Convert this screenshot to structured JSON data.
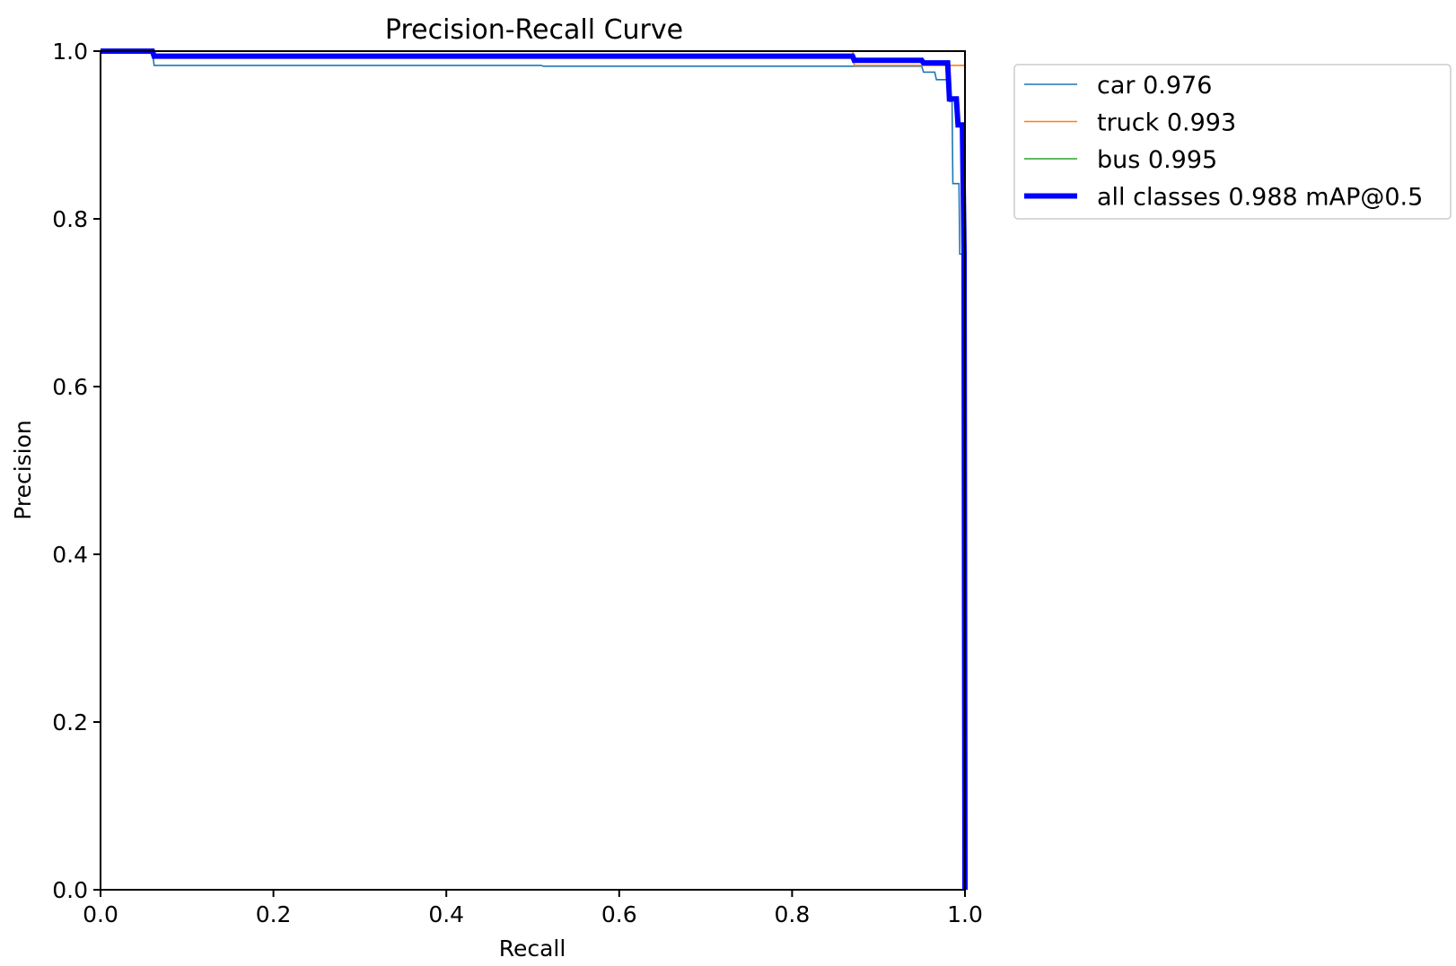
{
  "chart_data": {
    "type": "line",
    "title": "Precision-Recall Curve",
    "xlabel": "Recall",
    "ylabel": "Precision",
    "xlim": [
      0,
      1
    ],
    "ylim": [
      0,
      1
    ],
    "xticks": [
      "0.0",
      "0.2",
      "0.4",
      "0.6",
      "0.8",
      "1.0"
    ],
    "yticks": [
      "0.0",
      "0.2",
      "0.4",
      "0.6",
      "0.8",
      "1.0"
    ],
    "grid": false,
    "legend_position": "outside-top-right",
    "series": [
      {
        "name": "car 0.976",
        "color": "#1f77b4",
        "width": "thin",
        "points": [
          [
            0,
            1.0
          ],
          [
            0.06,
            1.0
          ],
          [
            0.062,
            0.983
          ],
          [
            0.51,
            0.983
          ],
          [
            0.512,
            0.982
          ],
          [
            0.87,
            0.982
          ],
          [
            0.95,
            0.982
          ],
          [
            0.952,
            0.975
          ],
          [
            0.965,
            0.975
          ],
          [
            0.967,
            0.966
          ],
          [
            0.98,
            0.966
          ],
          [
            0.982,
            0.94
          ],
          [
            0.985,
            0.94
          ],
          [
            0.986,
            0.842
          ],
          [
            0.993,
            0.842
          ],
          [
            0.994,
            0.758
          ],
          [
            0.999,
            0.758
          ],
          [
            1.0,
            0.0
          ]
        ]
      },
      {
        "name": "truck 0.993",
        "color": "#ff7f0e",
        "width": "thin",
        "points": [
          [
            0,
            1.0
          ],
          [
            0.87,
            1.0
          ],
          [
            0.872,
            0.983
          ],
          [
            1.0,
            0.983
          ],
          [
            1.0,
            0.0
          ]
        ]
      },
      {
        "name": "bus 0.995",
        "color": "#2ca02c",
        "width": "thin",
        "points": [
          [
            0,
            1.0
          ],
          [
            1.0,
            1.0
          ],
          [
            1.0,
            0.0
          ]
        ]
      },
      {
        "name": "all classes 0.988 mAP@0.5",
        "color": "#0000ff",
        "width": "thick",
        "points": [
          [
            0,
            1.0
          ],
          [
            0.06,
            1.0
          ],
          [
            0.062,
            0.994
          ],
          [
            0.87,
            0.994
          ],
          [
            0.872,
            0.989
          ],
          [
            0.95,
            0.989
          ],
          [
            0.952,
            0.986
          ],
          [
            0.98,
            0.986
          ],
          [
            0.982,
            0.943
          ],
          [
            0.99,
            0.943
          ],
          [
            0.992,
            0.912
          ],
          [
            0.997,
            0.912
          ],
          [
            0.999,
            0.76
          ],
          [
            1.0,
            0.0
          ]
        ]
      }
    ]
  }
}
